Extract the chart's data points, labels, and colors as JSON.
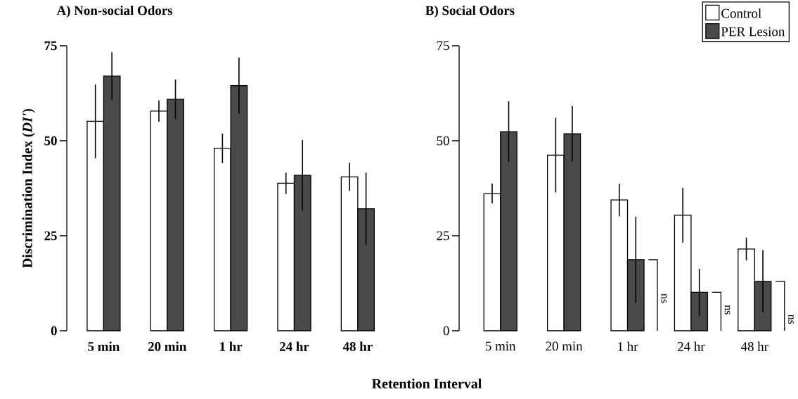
{
  "chart_data": [
    {
      "type": "bar",
      "title": "A) Non-social Odors",
      "xlabel": "Retention Interval",
      "ylabel": "Discrimination Index (*DI'*)",
      "categories": [
        "5 min",
        "20 min",
        "1 hr",
        "24 hr",
        "48 hr"
      ],
      "series": [
        {
          "color": "#ffffff",
          "values": [
            55.1,
            57.8,
            48.0,
            38.8,
            40.5
          ],
          "errors": [
            9.7,
            2.8,
            3.9,
            2.8,
            3.7
          ]
        },
        {
          "color": "#494a49",
          "values": [
            67.0,
            60.9,
            64.5,
            40.9,
            32.1
          ],
          "errors": [
            6.3,
            5.2,
            7.4,
            9.3,
            9.5
          ]
        }
      ],
      "ylim": [
        0,
        75
      ],
      "yticks": [
        0,
        25,
        50,
        75
      ],
      "legend": false
    },
    {
      "type": "bar",
      "title": "B) Social Odors",
      "categories": [
        "5 min",
        "20 min",
        "1 hr",
        "24 hr",
        "48 hr"
      ],
      "series": [
        {
          "name": "Control",
          "color": "#ffffff",
          "values": [
            36.1,
            46.2,
            34.4,
            30.4,
            21.5
          ],
          "errors": [
            2.6,
            9.8,
            4.3,
            7.2,
            3.0
          ]
        },
        {
          "name": "PER Lesion",
          "color": "#494a49",
          "values": [
            52.4,
            51.8,
            18.7,
            10.1,
            13.0
          ],
          "errors": [
            8.0,
            7.3,
            11.3,
            6.2,
            [
              4.8,
              21.2
            ]
          ]
        }
      ],
      "annotations": [
        {
          "text": "ns",
          "x": "1 hr",
          "y": 8.5
        },
        {
          "text": "ns",
          "x": "24 hr",
          "y": 5.5
        },
        {
          "text": "ns",
          "x": "48 hr",
          "y": 3.0
        }
      ],
      "ylim": [
        0,
        75
      ],
      "yticks": [
        0,
        25,
        50,
        75
      ],
      "legend": "top right"
    }
  ]
}
